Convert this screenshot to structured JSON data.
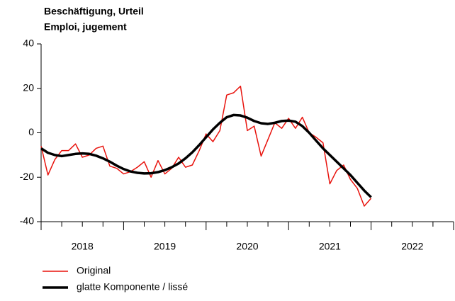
{
  "chart_data": {
    "type": "line",
    "title": [
      "Beschäftigung, Urteil",
      "Emploi, jugement"
    ],
    "x": [
      2018,
      2018.083,
      2018.167,
      2018.25,
      2018.333,
      2018.417,
      2018.5,
      2018.583,
      2018.667,
      2018.75,
      2018.833,
      2018.917,
      2019,
      2019.083,
      2019.167,
      2019.25,
      2019.333,
      2019.417,
      2019.5,
      2019.583,
      2019.667,
      2019.75,
      2019.833,
      2019.917,
      2020,
      2020.083,
      2020.167,
      2020.25,
      2020.333,
      2020.417,
      2020.5,
      2020.583,
      2020.667,
      2020.75,
      2020.833,
      2020.917,
      2021,
      2021.083,
      2021.167,
      2021.25,
      2021.333,
      2021.417,
      2021.5,
      2021.583,
      2021.667,
      2021.75,
      2021.833,
      2021.917,
      2022
    ],
    "series": [
      {
        "name": "Original",
        "color": "#e8120c",
        "width": 1.5,
        "values": [
          -6,
          -19,
          -12,
          -8,
          -8,
          -5,
          -11,
          -10,
          -7,
          -6,
          -15,
          -16,
          -18.5,
          -17.5,
          -15.5,
          -13,
          -20,
          -12.5,
          -18.5,
          -16,
          -11,
          -15.5,
          -14.5,
          -8,
          -0.5,
          -4,
          1,
          17,
          18,
          21,
          1,
          3,
          -10.5,
          -3,
          4.5,
          2,
          6.5,
          2,
          7,
          0,
          -2,
          -4.5,
          -23,
          -17,
          -14.5,
          -21,
          -25,
          -33,
          -29.5
        ]
      },
      {
        "name": "glatte Komponente / lissé",
        "color": "#000000",
        "width": 3.5,
        "values": [
          -7,
          -9,
          -10,
          -10.5,
          -10,
          -9.5,
          -9.3,
          -9.5,
          -10.3,
          -11.5,
          -13,
          -14.8,
          -16.3,
          -17.4,
          -18,
          -18.3,
          -18.2,
          -17.7,
          -16.8,
          -15.5,
          -13.8,
          -11.5,
          -8.8,
          -5.5,
          -2,
          1.5,
          4.5,
          7,
          8,
          7.8,
          6.8,
          5.3,
          4.3,
          4,
          4.5,
          5.3,
          5.5,
          5,
          3,
          0,
          -3.5,
          -7,
          -10,
          -13,
          -16,
          -19,
          -22.5,
          -26,
          -29
        ]
      }
    ],
    "xlim": [
      2018,
      2023
    ],
    "xticks": [
      {
        "value": 2018.5,
        "label": "2018"
      },
      {
        "value": 2019.5,
        "label": "2019"
      },
      {
        "value": 2020.5,
        "label": "2020"
      },
      {
        "value": 2021.5,
        "label": "2021"
      },
      {
        "value": 2022.5,
        "label": "2022"
      }
    ],
    "xminor_ticks": [
      2018,
      2018.25,
      2018.5,
      2018.75,
      2019,
      2019.25,
      2019.5,
      2019.75,
      2020,
      2020.25,
      2020.5,
      2020.75,
      2021,
      2021.25,
      2021.5,
      2021.75,
      2022,
      2022.25,
      2022.5,
      2022.75,
      2023
    ],
    "ylim": [
      -40,
      40
    ],
    "yticks": [
      -40,
      -20,
      0,
      20,
      40
    ],
    "grid": false
  }
}
